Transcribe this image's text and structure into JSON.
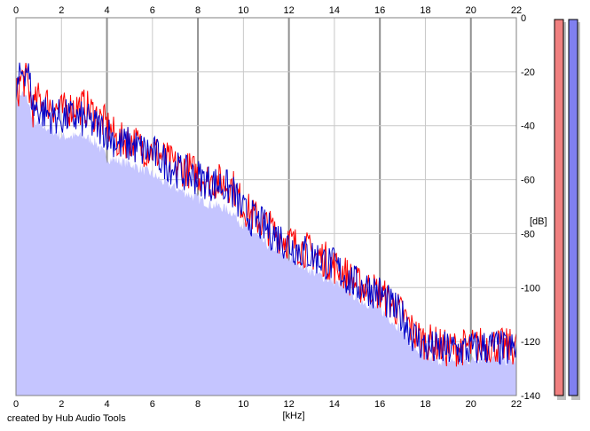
{
  "chart_data": {
    "type": "area",
    "title": "",
    "xlabel": "[kHz]",
    "ylabel": "[dB]",
    "xlim": [
      0,
      22
    ],
    "ylim": [
      -140,
      0
    ],
    "x_ticks": [
      0,
      2,
      4,
      6,
      8,
      10,
      12,
      14,
      16,
      18,
      20,
      22
    ],
    "y_ticks": [
      0,
      -20,
      -40,
      -60,
      -80,
      -100,
      -120,
      -140
    ],
    "grid": true,
    "legend": "none",
    "series": [
      {
        "color": "#ff0000",
        "x": [
          0,
          0.25,
          0.5,
          0.75,
          1,
          1.5,
          2,
          2.5,
          3,
          3.5,
          4,
          4.5,
          5,
          5.5,
          6,
          6.5,
          7,
          7.5,
          8,
          8.5,
          9,
          9.5,
          10,
          10.5,
          11,
          11.5,
          12,
          12.5,
          13,
          13.5,
          14,
          14.5,
          15,
          15.5,
          16,
          16.5,
          17,
          17.5,
          18,
          18.5,
          19,
          19.5,
          20,
          20.5,
          21,
          21.5,
          22
        ],
        "values": [
          -30,
          -22,
          -24,
          -34,
          -30,
          -32,
          -35,
          -33,
          -33,
          -36,
          -40,
          -46,
          -45,
          -48,
          -49,
          -52,
          -55,
          -56,
          -58,
          -60,
          -61,
          -62,
          -70,
          -74,
          -77,
          -80,
          -83,
          -85,
          -87,
          -89,
          -92,
          -95,
          -99,
          -100,
          -102,
          -106,
          -110,
          -117,
          -120,
          -121,
          -123,
          -122,
          -122,
          -121,
          -121,
          -122,
          -122
        ]
      },
      {
        "color": "#0000c8",
        "x": [
          0,
          0.25,
          0.5,
          0.75,
          1,
          1.5,
          2,
          2.5,
          3,
          3.5,
          4,
          4.5,
          5,
          5.5,
          6,
          6.5,
          7,
          7.5,
          8,
          8.5,
          9,
          9.5,
          10,
          10.5,
          11,
          11.5,
          12,
          12.5,
          13,
          13.5,
          14,
          14.5,
          15,
          15.5,
          16,
          16.5,
          17,
          17.5,
          18,
          18.5,
          19,
          19.5,
          20,
          20.5,
          21,
          21.5,
          22
        ],
        "values": [
          -29,
          -20,
          -18,
          -33,
          -34,
          -36,
          -37,
          -37,
          -38,
          -40,
          -42,
          -47,
          -47,
          -49,
          -50,
          -53,
          -56,
          -58,
          -59,
          -61,
          -62,
          -64,
          -72,
          -75,
          -78,
          -81,
          -84,
          -86,
          -88,
          -90,
          -92,
          -96,
          -99,
          -100,
          -102,
          -107,
          -111,
          -118,
          -122,
          -123,
          -123,
          -123,
          -123,
          -122,
          -122,
          -123,
          -123
        ]
      }
    ],
    "fill": {
      "color": "#c5c5ff",
      "x": [
        0,
        0.25,
        0.5,
        0.75,
        1,
        1.5,
        2,
        2.5,
        3,
        3.5,
        4,
        4.5,
        5,
        5.5,
        6,
        6.5,
        7,
        7.5,
        8,
        8.5,
        9,
        9.5,
        10,
        10.5,
        11,
        11.5,
        12,
        12.5,
        13,
        13.5,
        14,
        14.5,
        15,
        15.5,
        16,
        16.5,
        17,
        17.5,
        18,
        18.5,
        19,
        19.5,
        20,
        20.5,
        21,
        21.5,
        22
      ],
      "values": [
        -32,
        -28,
        -30,
        -38,
        -40,
        -41,
        -44,
        -44,
        -44,
        -46,
        -52,
        -53,
        -54,
        -56,
        -58,
        -61,
        -63,
        -65,
        -67,
        -69,
        -70,
        -72,
        -77,
        -80,
        -84,
        -86,
        -89,
        -91,
        -94,
        -96,
        -98,
        -100,
        -104,
        -106,
        -108,
        -112,
        -116,
        -122,
        -126,
        -127,
        -127,
        -127,
        -127,
        -126,
        -126,
        -127,
        -127
      ]
    },
    "level_meters": [
      {
        "color": "#f08080",
        "value": 1.0
      },
      {
        "color": "#8080f0",
        "value": 1.0
      }
    ]
  },
  "footer": {
    "credit": "created by Hub Audio Tools"
  }
}
